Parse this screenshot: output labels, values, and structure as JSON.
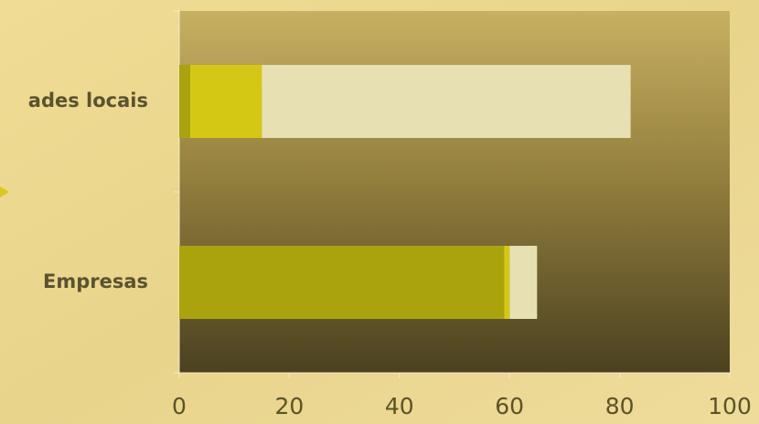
{
  "chart_data": {
    "type": "stacked-bar-horizontal",
    "categories": [
      "ades locais",
      "Empresas"
    ],
    "series": [
      {
        "color": "#aba30e",
        "values": [
          2,
          59
        ]
      },
      {
        "color": "#d4c814",
        "values": [
          13,
          1
        ]
      },
      {
        "color": "#e6e0b2",
        "values": [
          67,
          5
        ]
      }
    ],
    "xlim": [
      0,
      100
    ],
    "xticks": [
      0,
      20,
      40,
      60,
      80,
      100
    ]
  }
}
